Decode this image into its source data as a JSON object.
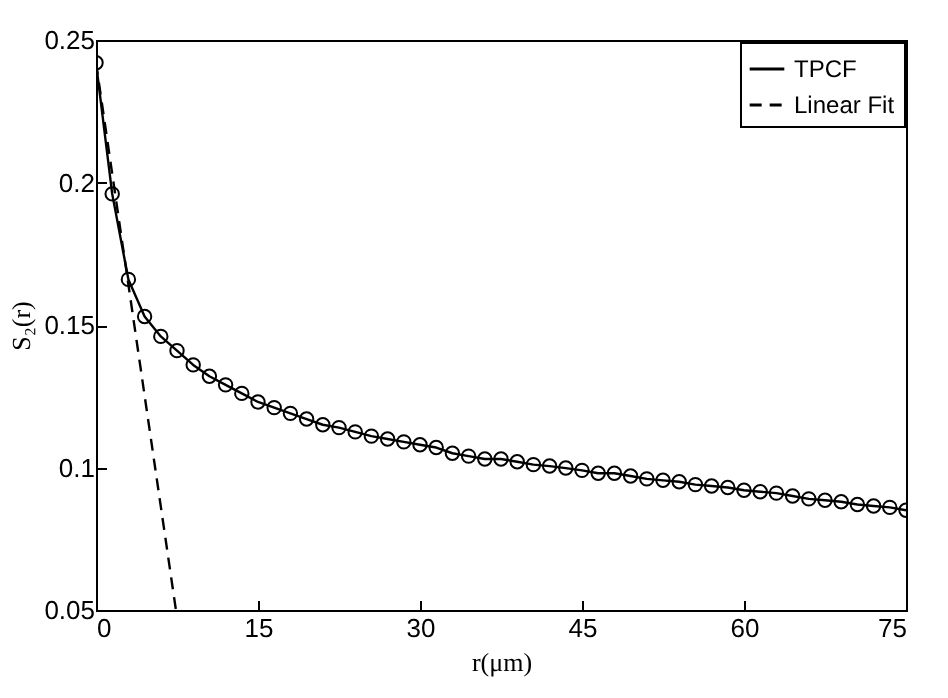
{
  "chart_data": {
    "type": "line",
    "xlabel": "r(μm)",
    "ylabel": "S₂(r)",
    "xlim": [
      0,
      75
    ],
    "ylim": [
      0.05,
      0.25
    ],
    "xticks": [
      0,
      15,
      30,
      45,
      60,
      75
    ],
    "yticks": [
      0.05,
      0.1,
      0.15,
      0.2,
      0.25
    ],
    "grid": false,
    "legend": "top right",
    "series": [
      {
        "name": "TPCF",
        "color": "#000000",
        "marker": "circle",
        "line_style": "solid",
        "x": [
          0,
          1.5,
          3,
          4.5,
          6,
          7.5,
          9,
          10.5,
          12,
          13.5,
          15,
          16.5,
          18,
          19.5,
          21,
          22.5,
          24,
          25.5,
          27,
          28.5,
          30,
          31.5,
          33,
          34.5,
          36,
          37.5,
          39,
          40.5,
          42,
          43.5,
          45,
          46.5,
          48,
          49.5,
          51,
          52.5,
          54,
          55.5,
          57,
          58.5,
          60,
          61.5,
          63,
          64.5,
          66,
          67.5,
          69,
          70.5,
          72,
          73.5,
          75
        ],
        "values": [
          0.242,
          0.196,
          0.166,
          0.153,
          0.146,
          0.141,
          0.136,
          0.132,
          0.129,
          0.126,
          0.123,
          0.121,
          0.119,
          0.117,
          0.115,
          0.114,
          0.1125,
          0.111,
          0.11,
          0.109,
          0.108,
          0.107,
          0.105,
          0.104,
          0.103,
          0.103,
          0.102,
          0.101,
          0.1005,
          0.0998,
          0.099,
          0.098,
          0.098,
          0.097,
          0.096,
          0.0955,
          0.095,
          0.094,
          0.0935,
          0.093,
          0.092,
          0.0915,
          0.091,
          0.09,
          0.089,
          0.0885,
          0.088,
          0.087,
          0.0865,
          0.086,
          0.085
        ]
      },
      {
        "name": "Linear Fit",
        "type": "line",
        "color": "#000000",
        "marker": "none",
        "line_style": "dashed",
        "x": [
          0,
          7.4
        ],
        "values": [
          0.242,
          0.05
        ]
      }
    ]
  }
}
